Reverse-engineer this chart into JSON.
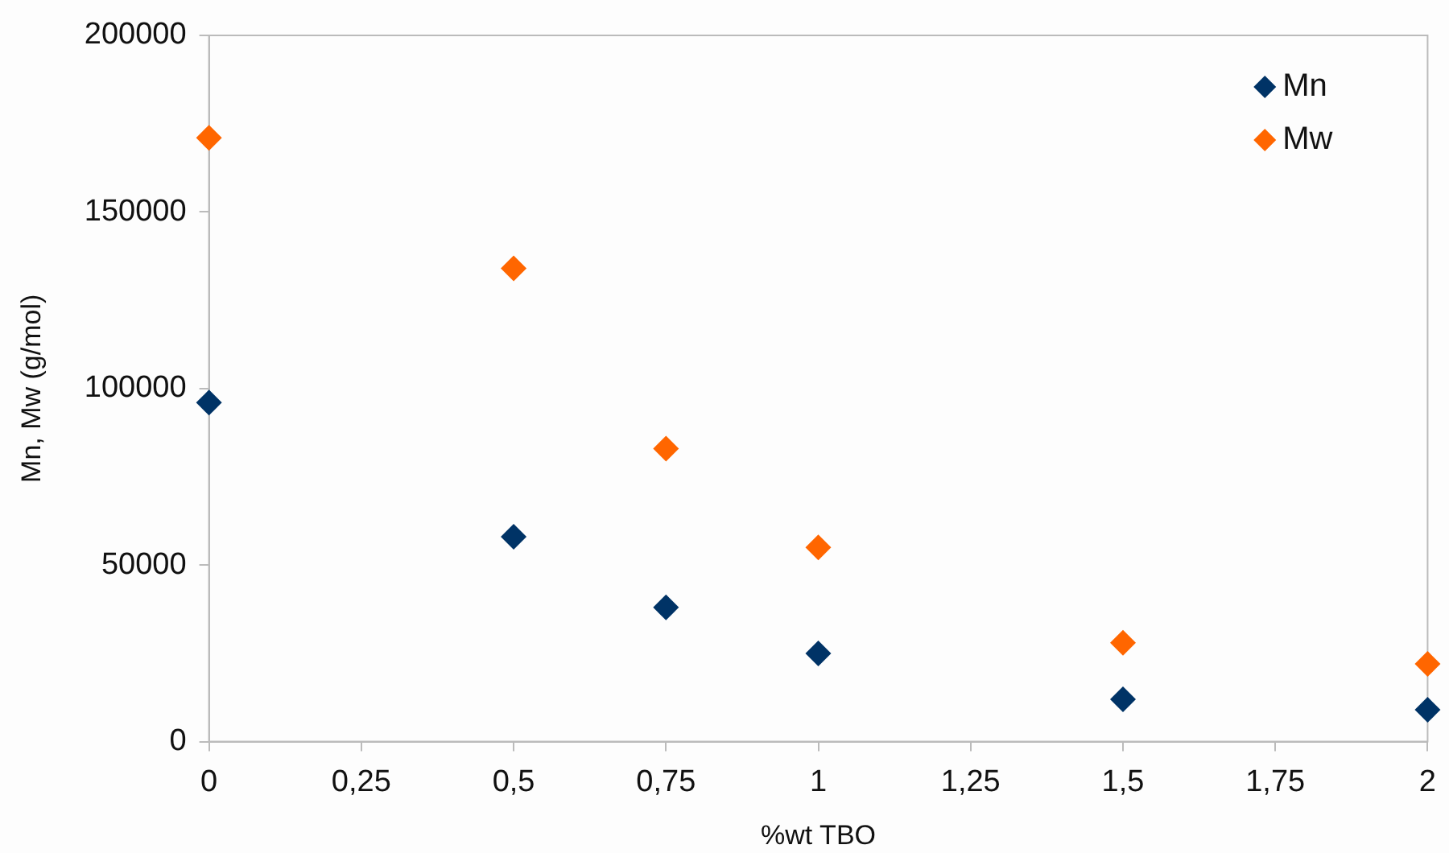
{
  "chart_data": {
    "type": "scatter",
    "xlabel": "%wt TBO",
    "ylabel": "Mn, Mw (g/mol)",
    "x": [
      0,
      0.5,
      0.75,
      1,
      1.5,
      2
    ],
    "series": [
      {
        "name": "Mn",
        "color": "#003366",
        "values": [
          96000,
          58000,
          38000,
          25000,
          12000,
          9000
        ]
      },
      {
        "name": "Mw",
        "color": "#ff6600",
        "values": [
          171000,
          134000,
          83000,
          55000,
          28000,
          22000
        ]
      }
    ],
    "xlim": [
      0,
      2
    ],
    "xticks": [
      0,
      {
        "value": 0.25,
        "label": "0,25"
      },
      {
        "value": 0.5,
        "label": "0,5"
      },
      {
        "value": 0.75,
        "label": "0,75"
      },
      1,
      {
        "value": 1.25,
        "label": "1,25"
      },
      {
        "value": 1.5,
        "label": "1,5"
      },
      {
        "value": 1.75,
        "label": "1,75"
      },
      2
    ],
    "ylim": [
      0,
      200000
    ],
    "yticks": [
      0,
      50000,
      100000,
      150000,
      200000
    ],
    "grid": false,
    "legend": "top right",
    "marker": "diamond"
  }
}
